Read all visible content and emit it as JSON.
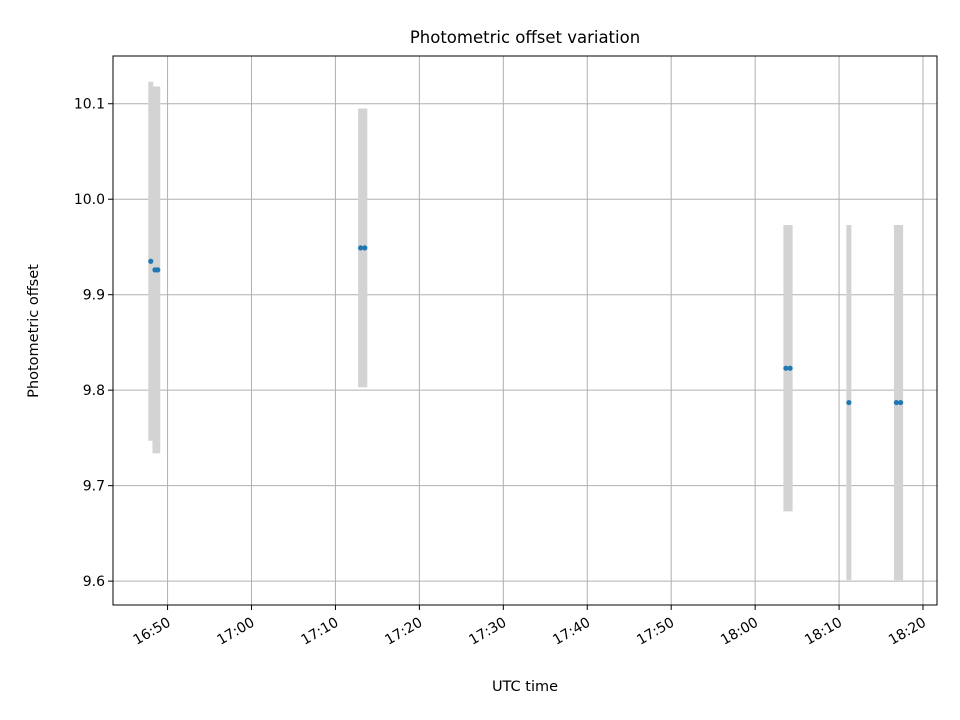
{
  "chart_data": {
    "type": "scatter",
    "title": "Photometric offset variation",
    "xlabel": "UTC time",
    "ylabel": "Photometric offset",
    "x_axis": {
      "kind": "time",
      "range": [
        "16:43:30",
        "18:21:40"
      ],
      "ticks": [
        "16:50",
        "17:00",
        "17:10",
        "17:20",
        "17:30",
        "17:40",
        "17:50",
        "18:00",
        "18:10",
        "18:20"
      ]
    },
    "y_axis": {
      "range": [
        9.575,
        10.15
      ],
      "ticks": [
        9.6,
        9.7,
        9.8,
        9.9,
        10.0,
        10.1
      ],
      "tick_labels": [
        "9.6",
        "9.7",
        "9.8",
        "9.9",
        "10.0",
        "10.1"
      ]
    },
    "grid": true,
    "point_color": "#1f77b4",
    "errorbar_color": "#d3d3d3",
    "points": [
      {
        "time": "16:48:00",
        "value": 9.935,
        "error": 0.188
      },
      {
        "time": "16:48:30",
        "value": 9.926,
        "error": 0.192
      },
      {
        "time": "16:48:50",
        "value": 9.926,
        "error": 0.192
      },
      {
        "time": "17:13:00",
        "value": 9.949,
        "error": 0.146
      },
      {
        "time": "17:13:30",
        "value": 9.949,
        "error": 0.146
      },
      {
        "time": "18:03:40",
        "value": 9.823,
        "error": 0.15
      },
      {
        "time": "18:04:10",
        "value": 9.823,
        "error": 0.15
      },
      {
        "time": "18:11:10",
        "value": 9.787,
        "error": 0.186
      },
      {
        "time": "18:16:50",
        "value": 9.787,
        "error": 0.186
      },
      {
        "time": "18:17:20",
        "value": 9.787,
        "error": 0.186
      }
    ]
  }
}
